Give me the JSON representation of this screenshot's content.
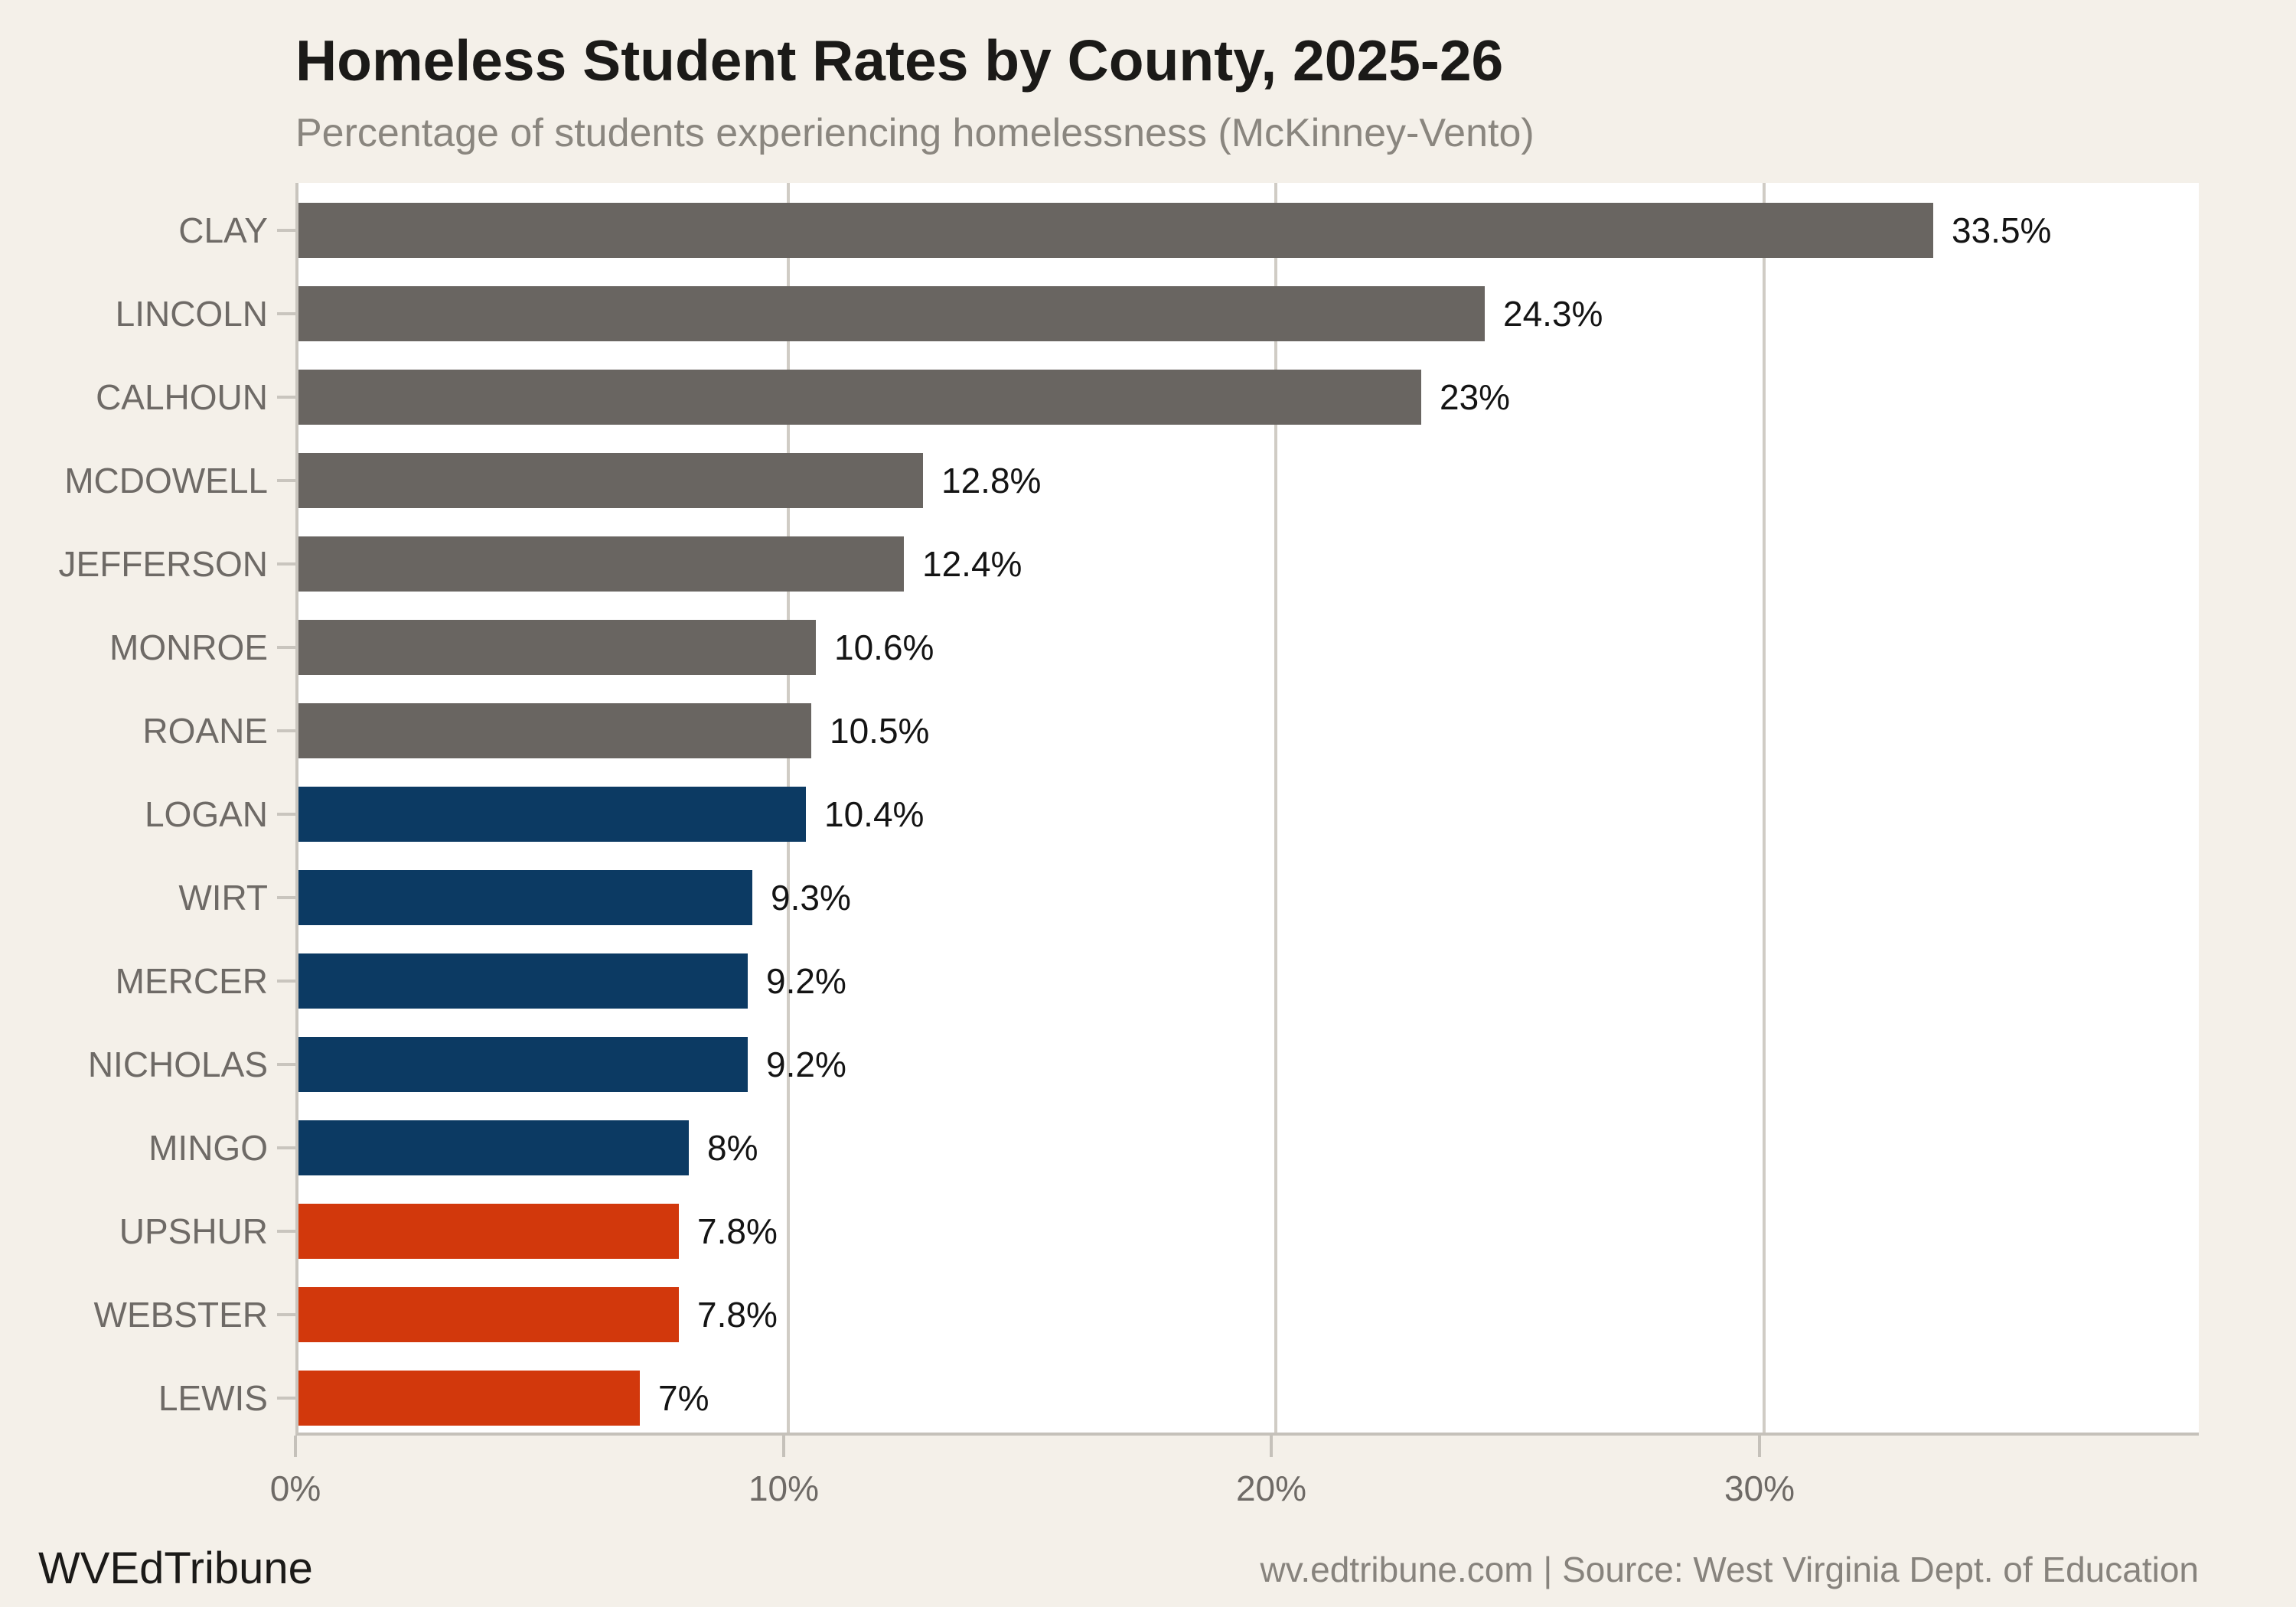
{
  "header": {
    "title": "Homeless Student Rates by County, 2025-26",
    "subtitle": "Percentage of students experiencing homelessness (McKinney-Vento)"
  },
  "footer": {
    "brand": "WVEdTribune",
    "source": "wv.edtribune.com | Source: West Virginia Dept. of Education"
  },
  "colors": {
    "background": "#f4f0e9",
    "plot_background": "#ffffff",
    "gridline": "#d0ccc5",
    "axis": "#c5c1ba",
    "label_gray": "#6e6a66",
    "value_text": "#141414",
    "group_high_gray": "#696561",
    "group_mid_navy": "#0c3a63",
    "group_low_orange": "#d2380c"
  },
  "chart_data": {
    "type": "bar",
    "orientation": "horizontal",
    "title": "Homeless Student Rates by County, 2025-26",
    "subtitle": "Percentage of students experiencing homelessness (McKinney-Vento)",
    "xlabel": "",
    "ylabel": "",
    "xlim": [
      0,
      39
    ],
    "grid": "vertical",
    "legend": "none",
    "categories": [
      "CLAY",
      "LINCOLN",
      "CALHOUN",
      "MCDOWELL",
      "JEFFERSON",
      "MONROE",
      "ROANE",
      "LOGAN",
      "WIRT",
      "MERCER",
      "NICHOLAS",
      "MINGO",
      "UPSHUR",
      "WEBSTER",
      "LEWIS"
    ],
    "values": [
      33.5,
      24.3,
      23,
      12.8,
      12.4,
      10.6,
      10.5,
      10.4,
      9.3,
      9.2,
      9.2,
      8,
      7.8,
      7.8,
      7
    ],
    "value_labels": [
      "33.5%",
      "24.3%",
      "23%",
      "12.8%",
      "12.4%",
      "10.6%",
      "10.5%",
      "10.4%",
      "9.3%",
      "9.2%",
      "9.2%",
      "8%",
      "7.8%",
      "7.8%",
      "7%"
    ],
    "bar_colors": [
      "#696561",
      "#696561",
      "#696561",
      "#696561",
      "#696561",
      "#696561",
      "#696561",
      "#0c3a63",
      "#0c3a63",
      "#0c3a63",
      "#0c3a63",
      "#0c3a63",
      "#d2380c",
      "#d2380c",
      "#d2380c"
    ],
    "x_ticks": [
      {
        "value": 0,
        "label": "0%"
      },
      {
        "value": 10,
        "label": "10%"
      },
      {
        "value": 20,
        "label": "20%"
      },
      {
        "value": 30,
        "label": "30%"
      }
    ],
    "gridline_values": [
      10,
      20,
      30
    ]
  }
}
